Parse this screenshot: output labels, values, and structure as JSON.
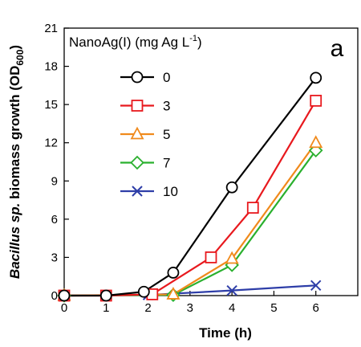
{
  "chart_data": {
    "type": "line",
    "panel_label": "a",
    "xlabel": "Time (h)",
    "ylabel_parts": {
      "italic": "Bacillus sp.",
      "rest": " biomass growth (OD",
      "sub": "600",
      "close": ")"
    },
    "legend": {
      "title_parts": {
        "main": "NanoAg(I) (mg Ag L",
        "sup": "-1",
        "close": ")"
      },
      "placement": "top-left"
    },
    "xlim": [
      0,
      7
    ],
    "ylim": [
      0,
      21
    ],
    "x_ticks": [
      0,
      1,
      2,
      3,
      4,
      5,
      6
    ],
    "y_ticks": [
      0,
      3,
      6,
      9,
      12,
      15,
      18,
      21
    ],
    "x_tick_labels": [
      "0",
      "1",
      "2",
      "3",
      "4",
      "5",
      "6"
    ],
    "y_tick_labels": [
      "0",
      "3",
      "6",
      "9",
      "12",
      "15",
      "18",
      "21"
    ],
    "grid": false,
    "series": [
      {
        "name": "0",
        "color": "#000000",
        "marker": "circle",
        "x": [
          0,
          1,
          1.9,
          2.6,
          4,
          6
        ],
        "y": [
          0,
          0,
          0.3,
          1.8,
          8.5,
          17.1
        ]
      },
      {
        "name": "3",
        "color": "#e8191e",
        "marker": "square",
        "x": [
          0,
          1,
          2.1,
          3.5,
          4.5,
          6
        ],
        "y": [
          0,
          0,
          0.1,
          3.0,
          6.9,
          15.3
        ]
      },
      {
        "name": "5",
        "color": "#f08a1c",
        "marker": "triangle",
        "x": [
          0,
          2.6,
          4,
          6
        ],
        "y": [
          0,
          0.1,
          2.9,
          12.0
        ]
      },
      {
        "name": "7",
        "color": "#2ab02e",
        "marker": "diamond",
        "x": [
          0,
          2.6,
          4,
          6
        ],
        "y": [
          0,
          0.05,
          2.4,
          11.4
        ]
      },
      {
        "name": "10",
        "color": "#2e3ea8",
        "marker": "x",
        "x": [
          0,
          2,
          4,
          6
        ],
        "y": [
          0,
          0.05,
          0.4,
          0.8
        ]
      }
    ]
  }
}
